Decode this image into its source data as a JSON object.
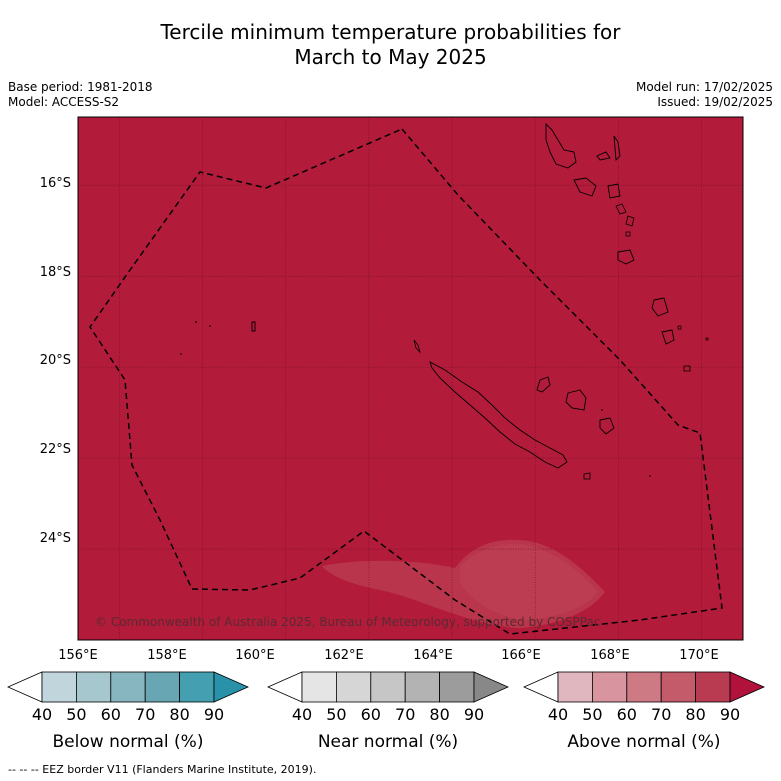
{
  "title": {
    "line1": "Tercile minimum temperature probabilities for",
    "line2": "March to May 2025"
  },
  "meta_left": {
    "base_period": "Base period: 1981-2018",
    "model": "Model: ACCESS-S2"
  },
  "meta_right": {
    "model_run": "Model run: 17/02/2025",
    "issued": "Issued: 19/02/2025"
  },
  "map": {
    "extent": {
      "lon_min": 155.0,
      "lon_max": 171.0,
      "lat_min": -26.0,
      "lat_max": -14.5
    },
    "background_category": "Above normal, 80-90%",
    "lat_labels": [
      "16°S",
      "18°S",
      "20°S",
      "22°S",
      "24°S"
    ],
    "lon_labels": [
      "156°E",
      "158°E",
      "160°E",
      "162°E",
      "164°E",
      "166°E",
      "168°E",
      "170°E"
    ],
    "copyright": "© Commonwealth of Australia 2025, Bureau of Meteorology, supported by COSPPac",
    "colors": {
      "fill": "#b31b3a",
      "lighter_patch": "#b9354b",
      "lightest_patch": "#bf4455"
    }
  },
  "colorbars": [
    {
      "label": "Below normal (%)",
      "ticks": [
        "40",
        "50",
        "60",
        "70",
        "80",
        "90"
      ],
      "colors": [
        "#ffffff",
        "#c0d6dc",
        "#a5c7cd",
        "#88b6c0",
        "#68a6b3",
        "#449fb0",
        "#2a92a8"
      ]
    },
    {
      "label": "Near normal (%)",
      "ticks": [
        "40",
        "50",
        "60",
        "70",
        "80",
        "90"
      ],
      "colors": [
        "#ffffff",
        "#e5e5e5",
        "#d6d6d6",
        "#c6c6c6",
        "#b3b3b3",
        "#9c9c9c",
        "#888888"
      ]
    },
    {
      "label": "Above normal (%)",
      "ticks": [
        "40",
        "50",
        "60",
        "70",
        "80",
        "90"
      ],
      "colors": [
        "#ffffff",
        "#e0b7bf",
        "#d8959f",
        "#ce7a85",
        "#c35b6a",
        "#b83b51",
        "#b1123c"
      ]
    }
  ],
  "footer": "--  --  -- EEZ border V11 (Flanders Marine Institute, 2019)."
}
